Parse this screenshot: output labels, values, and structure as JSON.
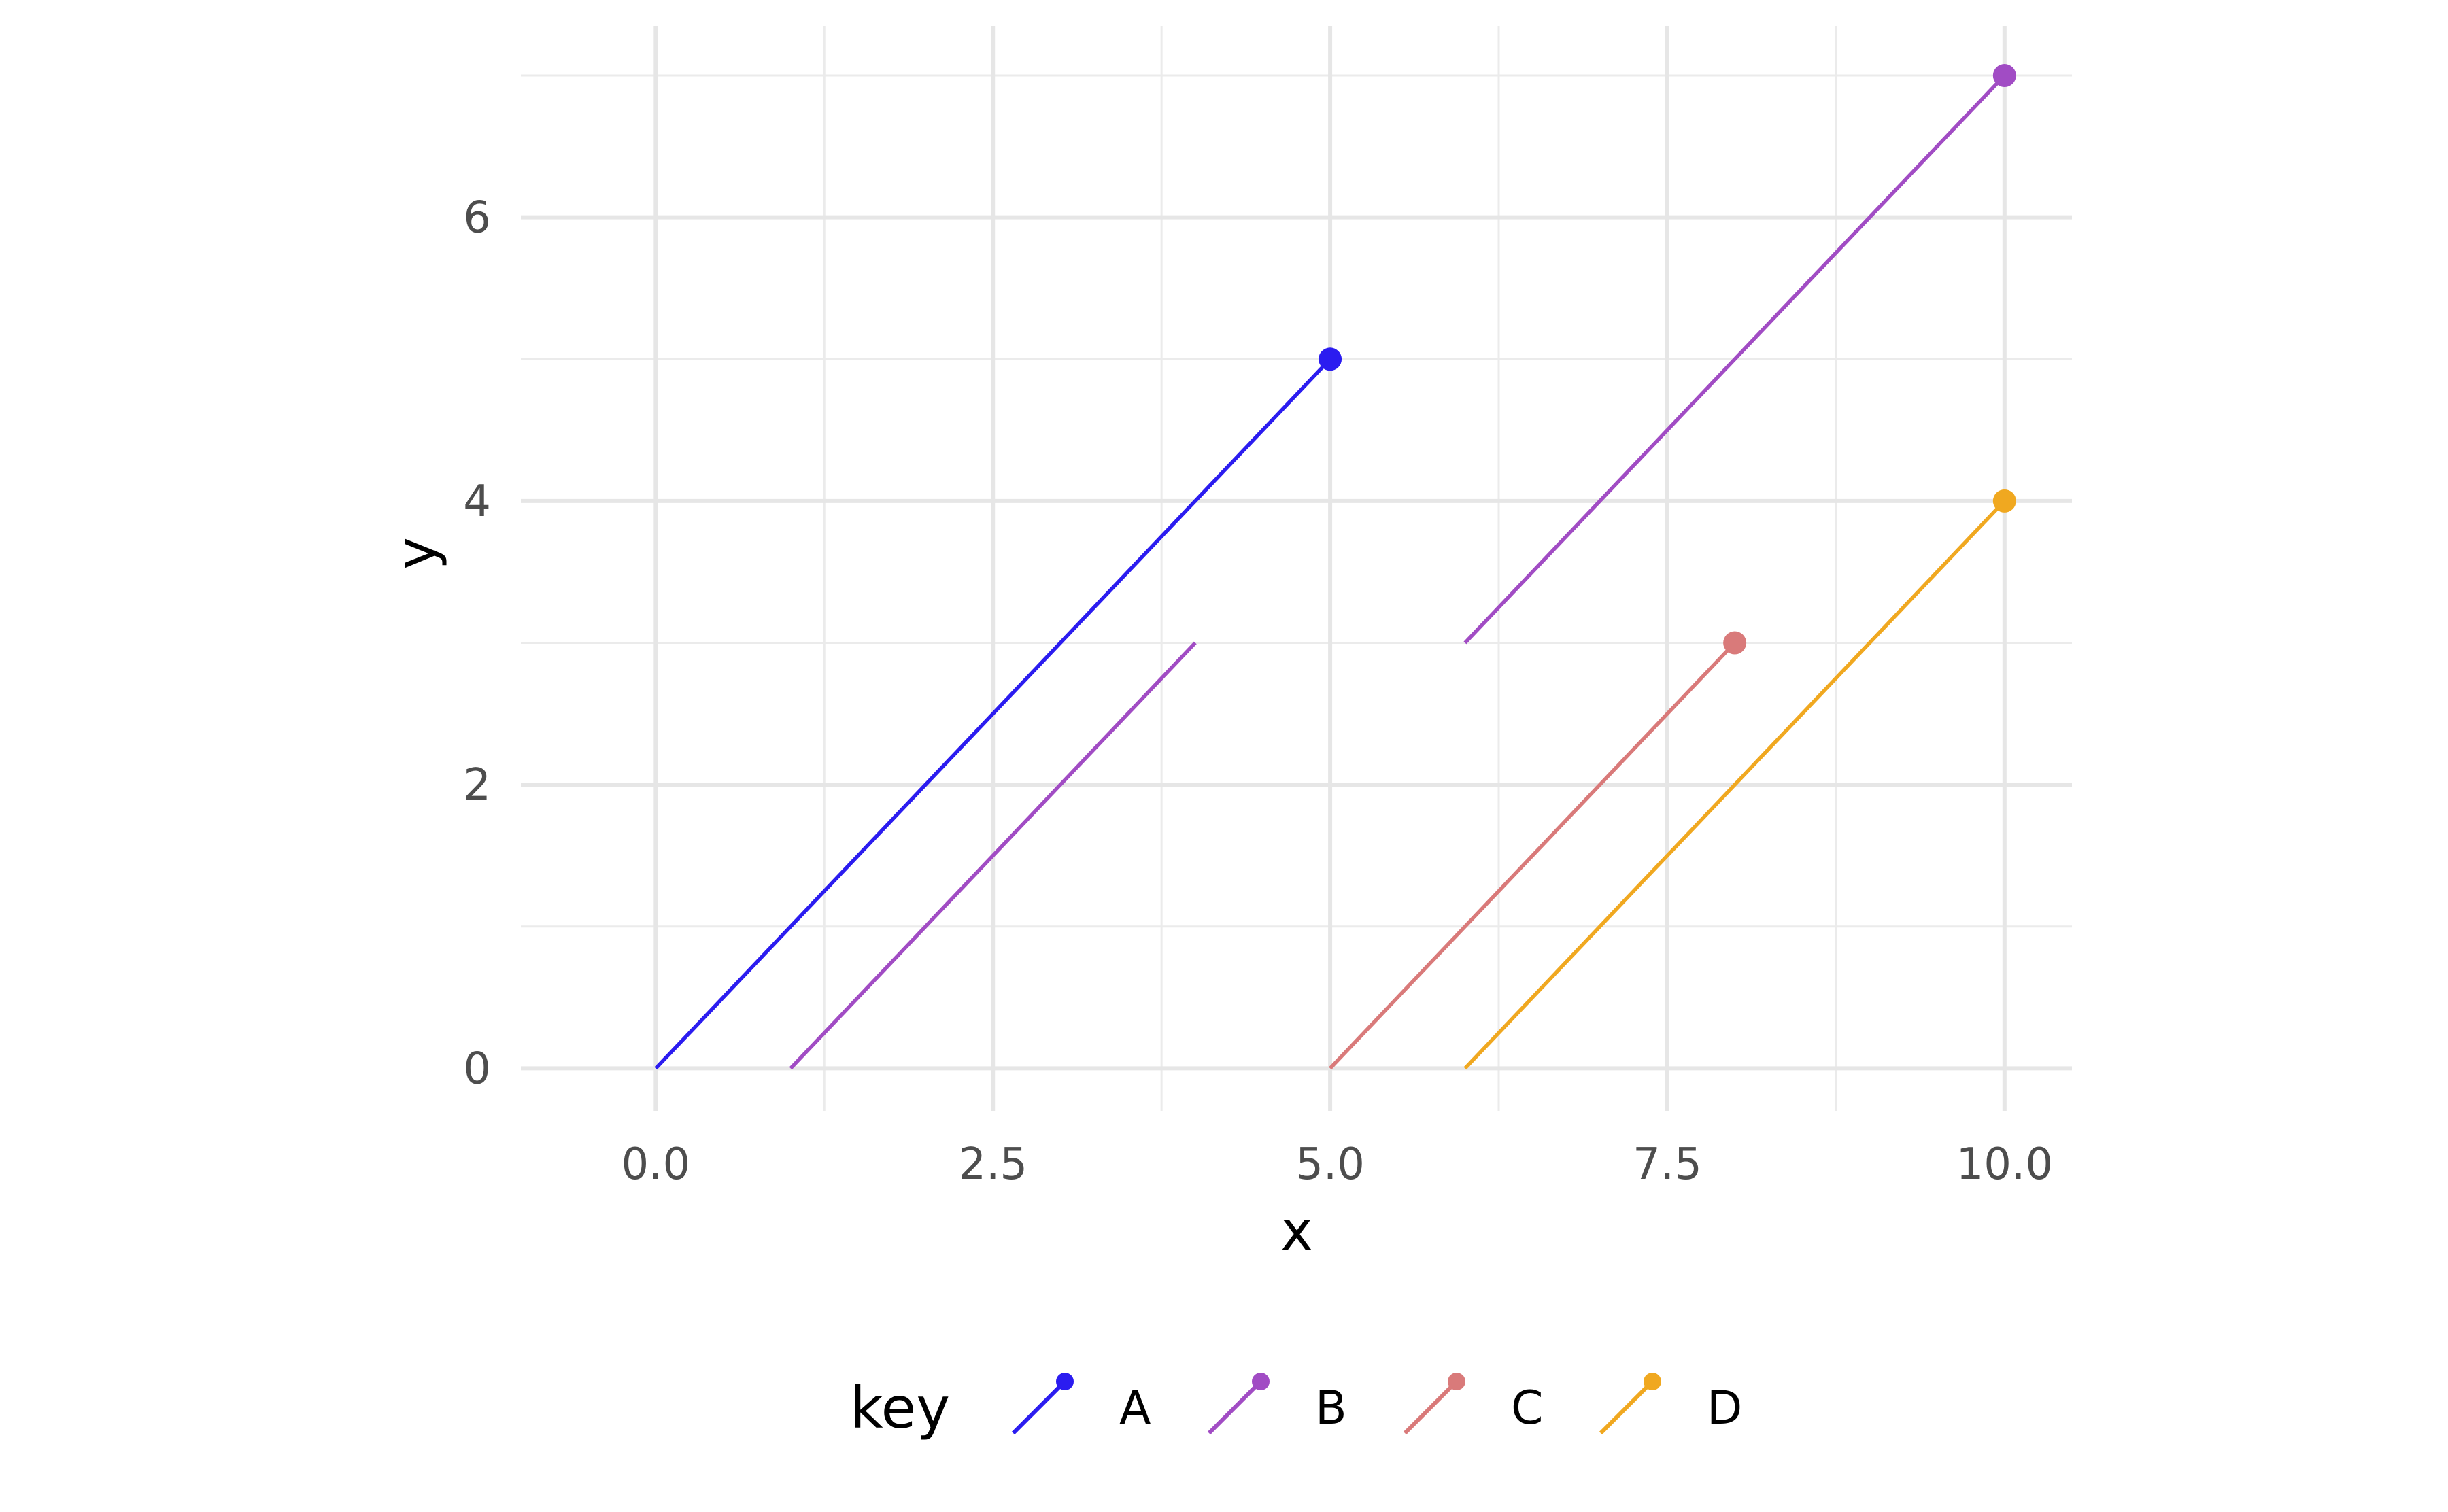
{
  "chart_data": {
    "type": "line",
    "xlabel": "x",
    "ylabel": "y",
    "xlim": [
      -1,
      10.5
    ],
    "ylim": [
      -0.3,
      7.35
    ],
    "x_ticks": [
      0,
      2.5,
      5,
      7.5,
      10
    ],
    "x_tick_labels": [
      "0.0",
      "2.5",
      "5.0",
      "7.5",
      "10.0"
    ],
    "x_minor_ticks": [
      1.25,
      3.75,
      6.25,
      8.75
    ],
    "y_ticks": [
      0,
      2,
      4,
      6
    ],
    "y_tick_labels": [
      "0",
      "2",
      "4",
      "6"
    ],
    "y_minor_ticks": [
      1,
      3,
      5,
      7
    ],
    "grid": true,
    "legend": {
      "title": "key",
      "position": "bottom"
    },
    "series": [
      {
        "name": "A",
        "color": "#2b1cf0",
        "segments": [
          {
            "x": [
              0,
              5
            ],
            "y": [
              0,
              5
            ],
            "end_point": true
          }
        ]
      },
      {
        "name": "B",
        "color": "#a14cc4",
        "segments": [
          {
            "x": [
              1,
              4
            ],
            "y": [
              0,
              3
            ],
            "end_point": false
          },
          {
            "x": [
              6,
              10
            ],
            "y": [
              3,
              7
            ],
            "end_point": true
          }
        ]
      },
      {
        "name": "C",
        "color": "#d97a7a",
        "segments": [
          {
            "x": [
              5,
              8
            ],
            "y": [
              0,
              3
            ],
            "end_point": true
          }
        ]
      },
      {
        "name": "D",
        "color": "#f0a820",
        "segments": [
          {
            "x": [
              6,
              10
            ],
            "y": [
              0,
              4
            ],
            "end_point": true
          }
        ]
      }
    ]
  }
}
